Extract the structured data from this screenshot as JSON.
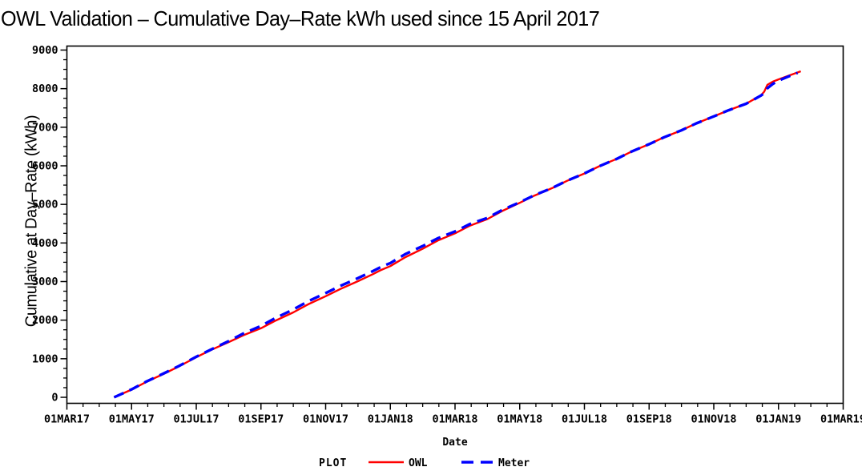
{
  "title": "OWL Validation – Cumulative Day–Rate kWh used since 15 April 2017",
  "colors": {
    "owl_line": "#ff0000",
    "meter_line": "#0000ff",
    "axis": "#000000",
    "background": "#ffffff"
  },
  "x_axis": {
    "label": "Date",
    "tick_labels": [
      "01MAR17",
      "01MAY17",
      "01JUL17",
      "01SEP17",
      "01NOV17",
      "01JAN18",
      "01MAR18",
      "01MAY18",
      "01JUL18",
      "01SEP18",
      "01NOV18",
      "01JAN19",
      "01MAR19"
    ]
  },
  "y_axis": {
    "label": "Cumulative at Day–Rate (kWh)",
    "tick_labels": [
      "0",
      "1000",
      "2000",
      "3000",
      "4000",
      "5000",
      "6000",
      "7000",
      "8000",
      "9000"
    ]
  },
  "legend": {
    "title": "PLOT",
    "position": "bottom"
  },
  "chart_data": {
    "type": "line",
    "title": "OWL Validation – Cumulative Day–Rate kWh used since 15 April 2017",
    "xlabel": "Date",
    "ylabel": "Cumulative at Day–Rate (kWh)",
    "x_range": [
      "01MAR17",
      "01MAR19"
    ],
    "ylim": [
      0,
      9000
    ],
    "y_major_step": 1000,
    "y_minor_step": 250,
    "x_major_tick_every_months": 2,
    "x_minor_tick_every_months": 0.5,
    "grid": false,
    "legend_position": "bottom",
    "series": [
      {
        "name": "OWL",
        "color": "#ff0000",
        "line_style": "solid",
        "points": [
          [
            "15APR17",
            0
          ],
          [
            "01MAY17",
            200
          ],
          [
            "15MAY17",
            400
          ],
          [
            "01JUN17",
            610
          ],
          [
            "15JUN17",
            800
          ],
          [
            "01JUL17",
            1040
          ],
          [
            "15JUL17",
            1230
          ],
          [
            "01AUG17",
            1430
          ],
          [
            "15AUG17",
            1610
          ],
          [
            "01SEP17",
            1790
          ],
          [
            "15SEP17",
            1990
          ],
          [
            "01OCT17",
            2200
          ],
          [
            "15OCT17",
            2410
          ],
          [
            "01NOV17",
            2620
          ],
          [
            "15NOV17",
            2810
          ],
          [
            "01DEC17",
            3010
          ],
          [
            "15DEC17",
            3190
          ],
          [
            "22DEC17",
            3290
          ],
          [
            "01JAN18",
            3400
          ],
          [
            "15JAN18",
            3630
          ],
          [
            "01FEB18",
            3850
          ],
          [
            "15FEB18",
            4060
          ],
          [
            "01MAR18",
            4250
          ],
          [
            "15MAR18",
            4450
          ],
          [
            "01APR18",
            4620
          ],
          [
            "15APR18",
            4830
          ],
          [
            "01MAY18",
            5040
          ],
          [
            "15MAY18",
            5230
          ],
          [
            "01JUN18",
            5420
          ],
          [
            "15JUN18",
            5610
          ],
          [
            "01JUL18",
            5800
          ],
          [
            "15JUL18",
            5990
          ],
          [
            "01AUG18",
            6180
          ],
          [
            "15AUG18",
            6370
          ],
          [
            "01SEP18",
            6560
          ],
          [
            "15SEP18",
            6740
          ],
          [
            "01OCT18",
            6920
          ],
          [
            "15OCT18",
            7100
          ],
          [
            "01NOV18",
            7280
          ],
          [
            "15NOV18",
            7440
          ],
          [
            "01DEC18",
            7610
          ],
          [
            "15DEC18",
            7830
          ],
          [
            "18DEC18",
            7920
          ],
          [
            "21DEC18",
            8100
          ],
          [
            "26DEC18",
            8180
          ],
          [
            "01JAN19",
            8240
          ],
          [
            "10JAN19",
            8330
          ],
          [
            "22JAN19",
            8450
          ]
        ]
      },
      {
        "name": "Meter",
        "color": "#0000ff",
        "line_style": "dashed",
        "points": [
          [
            "15APR17",
            0
          ],
          [
            "01MAY17",
            205
          ],
          [
            "15MAY17",
            410
          ],
          [
            "01JUN17",
            620
          ],
          [
            "15JUN17",
            810
          ],
          [
            "01JUL17",
            1050
          ],
          [
            "15JUL17",
            1240
          ],
          [
            "01AUG17",
            1455
          ],
          [
            "15AUG17",
            1655
          ],
          [
            "01SEP17",
            1850
          ],
          [
            "15SEP17",
            2060
          ],
          [
            "01OCT17",
            2275
          ],
          [
            "15OCT17",
            2490
          ],
          [
            "01NOV17",
            2700
          ],
          [
            "15NOV17",
            2890
          ],
          [
            "01DEC17",
            3090
          ],
          [
            "15DEC17",
            3270
          ],
          [
            "22DEC17",
            3370
          ],
          [
            "01JAN18",
            3480
          ],
          [
            "15JAN18",
            3710
          ],
          [
            "01FEB18",
            3920
          ],
          [
            "15FEB18",
            4120
          ],
          [
            "01MAR18",
            4300
          ],
          [
            "15MAR18",
            4490
          ],
          [
            "01APR18",
            4650
          ],
          [
            "15APR18",
            4855
          ],
          [
            "01MAY18",
            5055
          ],
          [
            "15MAY18",
            5240
          ],
          [
            "01JUN18",
            5425
          ],
          [
            "15JUN18",
            5612
          ],
          [
            "01JUL18",
            5802
          ],
          [
            "15JUL18",
            5990
          ],
          [
            "01AUG18",
            6180
          ],
          [
            "15AUG18",
            6370
          ],
          [
            "01SEP18",
            6560
          ],
          [
            "15SEP18",
            6740
          ],
          [
            "01OCT18",
            6920
          ],
          [
            "15OCT18",
            7100
          ],
          [
            "01NOV18",
            7280
          ],
          [
            "15NOV18",
            7440
          ],
          [
            "01DEC18",
            7610
          ],
          [
            "15DEC18",
            7820
          ],
          [
            "18DEC18",
            7880
          ],
          [
            "21DEC18",
            8010
          ],
          [
            "26DEC18",
            8120
          ],
          [
            "01JAN19",
            8210
          ],
          [
            "10JAN19",
            8310
          ],
          [
            "19JAN19",
            8410
          ]
        ]
      }
    ]
  }
}
